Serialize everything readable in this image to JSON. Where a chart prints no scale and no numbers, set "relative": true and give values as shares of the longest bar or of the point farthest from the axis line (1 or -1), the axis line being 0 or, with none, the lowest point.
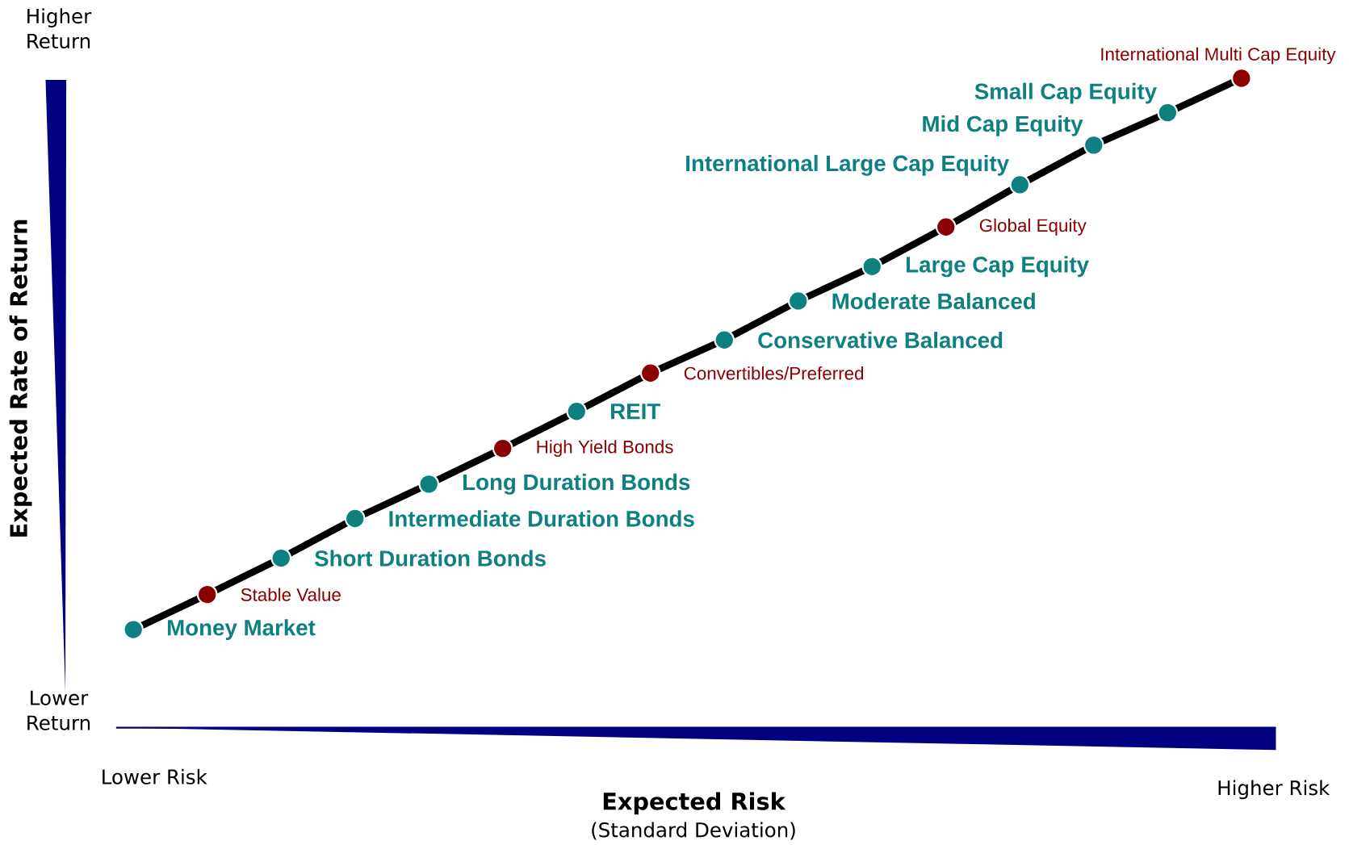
{
  "chart_data": {
    "type": "line",
    "relative": true,
    "ylabel": "Expected Rate of Return",
    "xlabel": "Expected Risk",
    "categories": [
      null,
      null,
      null,
      null,
      null,
      null,
      null,
      null,
      null,
      null,
      null,
      null,
      null,
      null,
      null,
      null
    ],
    "series": [
      {
        "color": "#000000",
        "line_style": "solid",
        "marker": "circle",
        "colors": [
          "#0e8080",
          "#8b0000",
          "#0e8080",
          "#0e8080",
          "#0e8080",
          "#8b0000",
          "#0e8080",
          "#8b0000",
          "#0e8080",
          "#0e8080",
          "#0e8080",
          "#8b0000",
          "#0e8080",
          "#0e8080",
          "#0e8080",
          "#8b0000"
        ],
        "values": [
          0.151,
          0.205,
          0.261,
          0.322,
          0.375,
          0.43,
          0.487,
          0.546,
          0.597,
          0.657,
          0.71,
          0.771,
          0.836,
          0.897,
          0.947,
          1.0
        ]
      }
    ],
    "annotations": [
      "Money Market",
      "Stable Value",
      "Short Duration Bonds",
      "Intermediate Duration Bonds",
      "Long Duration Bonds",
      "High Yield Bonds",
      "REIT",
      "Convertibles/Preferred",
      "Conservative Balanced",
      "Moderate Balanced",
      "Large Cap Equity",
      "Global Equity",
      "International Large Cap Equity",
      "Mid Cap Equity",
      "Small Cap Equity",
      "International Multi Cap Equity",
      "Higher Return",
      "Lower Return",
      "Lower Risk",
      "Higher Risk",
      "(Standard Deviation)"
    ]
  }
}
